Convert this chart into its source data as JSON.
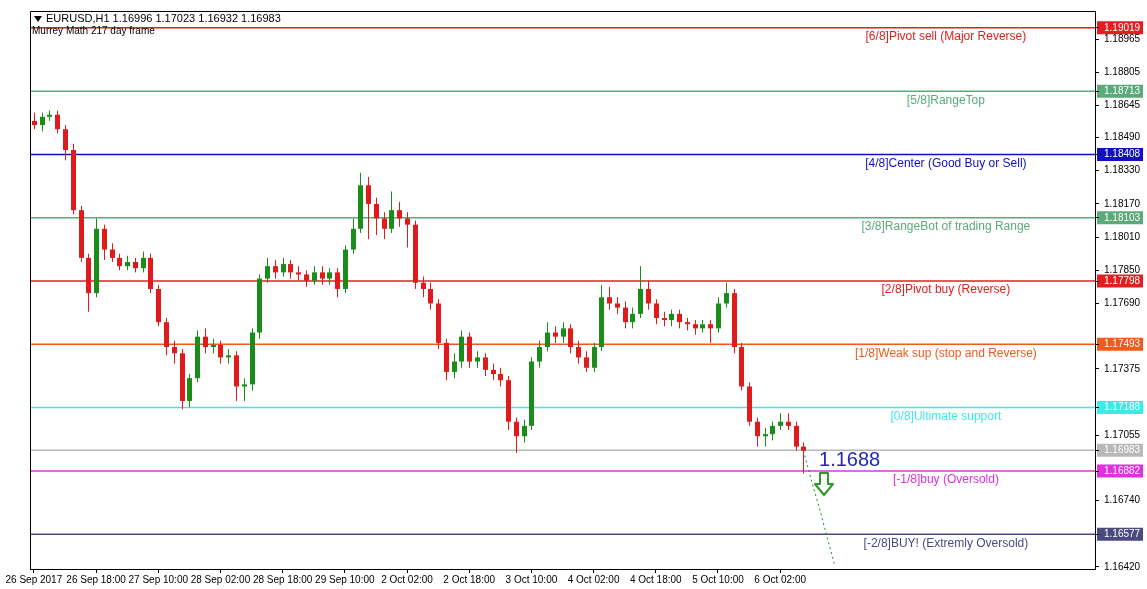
{
  "chart_data": {
    "type": "candlestick",
    "title": "EURUSD,H1  1.16996 1.17023 1.16932 1.16983",
    "subtitle": "Murrey Math 217 day frame",
    "categories": [
      "26 Sep 2017",
      null,
      null,
      null,
      null,
      null,
      null,
      null,
      "26 Sep 18:00",
      null,
      null,
      null,
      null,
      null,
      null,
      null,
      "27 Sep 10:00",
      null,
      null,
      null,
      null,
      null,
      null,
      null,
      "28 Sep 02:00",
      null,
      null,
      null,
      null,
      null,
      null,
      null,
      "28 Sep 18:00",
      null,
      null,
      null,
      null,
      null,
      null,
      null,
      "29 Sep 10:00",
      null,
      null,
      null,
      null,
      null,
      null,
      null,
      "2 Oct 02:00",
      null,
      null,
      null,
      null,
      null,
      null,
      null,
      "2 Oct 18:00",
      null,
      null,
      null,
      null,
      null,
      null,
      null,
      "3 Oct 10:00",
      null,
      null,
      null,
      null,
      null,
      null,
      null,
      "4 Oct 02:00",
      null,
      null,
      null,
      null,
      null,
      null,
      null,
      "4 Oct 18:00",
      null,
      null,
      null,
      null,
      null,
      null,
      null,
      "5 Oct 10:00",
      null,
      null,
      null,
      null,
      null,
      null,
      null,
      "6 Oct 02:00",
      null,
      null,
      null,
      null,
      null,
      null,
      null,
      null,
      null,
      null,
      null,
      null,
      null,
      null,
      null,
      null,
      null,
      null,
      null,
      null,
      null,
      null,
      null,
      null,
      null,
      null,
      null,
      null,
      null,
      null,
      null,
      null,
      null,
      null,
      null,
      null,
      null,
      null,
      null,
      null
    ],
    "ylim": [
      1.1641,
      1.191
    ],
    "yticks": [
      1.19019,
      1.18965,
      1.18805,
      1.18713,
      1.18645,
      {
        "value": 1.1849,
        "label": "1.18490"
      },
      1.18408,
      {
        "value": 1.1833,
        "label": "1.18330"
      },
      {
        "value": 1.1817,
        "label": "1.18170"
      },
      1.18103,
      {
        "value": 1.1801,
        "label": "1.18010"
      },
      {
        "value": 1.1785,
        "label": "1.17850"
      },
      1.17798,
      {
        "value": 1.1769,
        "label": "1.17690"
      },
      1.17493,
      1.17375,
      1.17188,
      1.17055,
      1.16983,
      1.16882,
      {
        "value": 1.1674,
        "label": "1.16740"
      },
      1.16577,
      {
        "value": 1.1642,
        "label": "1.16420"
      }
    ],
    "grid": false,
    "ref_lines": [
      {
        "axis": "y",
        "value": 1.19019,
        "label": "[6/8]Pivot sell (Major Reverse)",
        "color": "#e02020"
      },
      {
        "axis": "y",
        "value": 1.18713,
        "label": "[5/8]RangeTop",
        "color": "#5aaa7a"
      },
      {
        "axis": "y",
        "value": 1.18408,
        "label": "[4/8]Center (Good Buy or Sell)",
        "color": "#1010c0"
      },
      {
        "axis": "y",
        "value": 1.18103,
        "label": "[3/8]RangeBot of trading Range",
        "color": "#5aaa7a"
      },
      {
        "axis": "y",
        "value": 1.17798,
        "label": "[2/8]Pivot buy (Reverse)",
        "color": "#e02020"
      },
      {
        "axis": "y",
        "value": 1.17493,
        "label": "[1/8]Weak sup (stop and Reverse)",
        "color": "#f05a1a"
      },
      {
        "axis": "y",
        "value": 1.17188,
        "label": "[0/8]Ultimate support",
        "color": "#40e8e8"
      },
      {
        "axis": "y",
        "value": 1.16983,
        "label": null,
        "color": "#b8b8b8"
      },
      {
        "axis": "y",
        "value": 1.16882,
        "label": "[-1/8]buy (Oversold)",
        "color": "#e030e0"
      },
      {
        "axis": "y",
        "value": 1.16577,
        "label": "[-2/8]BUY! (Extremly Oversold)",
        "color": "#4a4a80"
      }
    ],
    "annotations": [
      {
        "text": "1.1688",
        "y": 1.1688
      }
    ],
    "series": [
      {
        "ohlc": [
          [
            1.1857,
            1.1861,
            1.1853,
            1.1855
          ],
          [
            1.1855,
            1.1861,
            1.1852,
            1.1859
          ],
          [
            1.1859,
            1.1862,
            1.1857,
            1.186
          ],
          [
            1.186,
            1.1862,
            1.1851,
            1.1853
          ],
          [
            1.1853,
            1.1855,
            1.1838,
            1.1843
          ],
          [
            1.1843,
            1.1846,
            1.1812,
            1.1814
          ],
          [
            1.1814,
            1.1816,
            1.1789,
            1.1791
          ],
          [
            1.1791,
            1.1793,
            1.1765,
            1.1774
          ],
          [
            1.1774,
            1.181,
            1.1772,
            1.1805
          ],
          [
            1.1805,
            1.1807,
            1.179,
            1.1795
          ],
          [
            1.1795,
            1.1798,
            1.1789,
            1.1791
          ],
          [
            1.1791,
            1.1793,
            1.1785,
            1.1787
          ],
          [
            1.1787,
            1.1792,
            1.1785,
            1.1789
          ],
          [
            1.1789,
            1.1791,
            1.1784,
            1.1786
          ],
          [
            1.1786,
            1.1794,
            1.1784,
            1.1791
          ],
          [
            1.1791,
            1.1793,
            1.1774,
            1.1776
          ],
          [
            1.1776,
            1.1778,
            1.1758,
            1.176
          ],
          [
            1.176,
            1.1762,
            1.1744,
            1.1748
          ],
          [
            1.1748,
            1.1751,
            1.174,
            1.1745
          ],
          [
            1.1745,
            1.1747,
            1.1718,
            1.1722
          ],
          [
            1.1722,
            1.1735,
            1.1719,
            1.1733
          ],
          [
            1.1733,
            1.1756,
            1.1731,
            1.1753
          ],
          [
            1.1753,
            1.1757,
            1.1745,
            1.1748
          ],
          [
            1.1748,
            1.1752,
            1.1745,
            1.1749
          ],
          [
            1.1749,
            1.1751,
            1.174,
            1.1743
          ],
          [
            1.1743,
            1.1747,
            1.174,
            1.1744
          ],
          [
            1.1744,
            1.1746,
            1.1722,
            1.1729
          ],
          [
            1.1729,
            1.1733,
            1.1722,
            1.173
          ],
          [
            1.173,
            1.1757,
            1.1727,
            1.1755
          ],
          [
            1.1755,
            1.1783,
            1.1752,
            1.1781
          ],
          [
            1.1781,
            1.1791,
            1.1779,
            1.1787
          ],
          [
            1.1787,
            1.179,
            1.1781,
            1.1784
          ],
          [
            1.1784,
            1.1791,
            1.1782,
            1.1788
          ],
          [
            1.1788,
            1.179,
            1.1781,
            1.1784
          ],
          [
            1.1784,
            1.1787,
            1.178,
            1.1783
          ],
          [
            1.1783,
            1.1785,
            1.1777,
            1.178
          ],
          [
            1.178,
            1.1787,
            1.1778,
            1.1784
          ],
          [
            1.1784,
            1.1787,
            1.1778,
            1.1781
          ],
          [
            1.1781,
            1.1786,
            1.1778,
            1.1784
          ],
          [
            1.1784,
            1.1786,
            1.1772,
            1.1776
          ],
          [
            1.1776,
            1.1797,
            1.1774,
            1.1795
          ],
          [
            1.1795,
            1.181,
            1.1793,
            1.1805
          ],
          [
            1.1805,
            1.1832,
            1.1803,
            1.1826
          ],
          [
            1.1826,
            1.183,
            1.18,
            1.1817
          ],
          [
            1.1817,
            1.182,
            1.1802,
            1.181
          ],
          [
            1.181,
            1.1813,
            1.18,
            1.1805
          ],
          [
            1.1805,
            1.1823,
            1.1803,
            1.1814
          ],
          [
            1.1814,
            1.1818,
            1.1806,
            1.181
          ],
          [
            1.181,
            1.1813,
            1.1796,
            1.1807
          ],
          [
            1.1807,
            1.1809,
            1.1776,
            1.1779
          ],
          [
            1.1779,
            1.1782,
            1.1772,
            1.1776
          ],
          [
            1.1776,
            1.1779,
            1.1766,
            1.1769
          ],
          [
            1.1769,
            1.1771,
            1.1747,
            1.175
          ],
          [
            1.175,
            1.1752,
            1.1732,
            1.1736
          ],
          [
            1.1736,
            1.1745,
            1.1733,
            1.1741
          ],
          [
            1.1741,
            1.1756,
            1.1738,
            1.1753
          ],
          [
            1.1753,
            1.1755,
            1.1738,
            1.1741
          ],
          [
            1.1741,
            1.1746,
            1.1738,
            1.1743
          ],
          [
            1.1743,
            1.1745,
            1.1734,
            1.1737
          ],
          [
            1.1737,
            1.174,
            1.1732,
            1.1735
          ],
          [
            1.1735,
            1.1738,
            1.1729,
            1.1732
          ],
          [
            1.1732,
            1.1734,
            1.1708,
            1.1712
          ],
          [
            1.1712,
            1.1714,
            1.1697,
            1.1705
          ],
          [
            1.1705,
            1.1713,
            1.1702,
            1.171
          ],
          [
            1.171,
            1.1743,
            1.1708,
            1.1741
          ],
          [
            1.1741,
            1.1751,
            1.1738,
            1.1748
          ],
          [
            1.1748,
            1.176,
            1.1746,
            1.1755
          ],
          [
            1.1755,
            1.1758,
            1.175,
            1.1753
          ],
          [
            1.1753,
            1.176,
            1.175,
            1.1757
          ],
          [
            1.1757,
            1.1759,
            1.1745,
            1.1748
          ],
          [
            1.1748,
            1.1751,
            1.174,
            1.1743
          ],
          [
            1.1743,
            1.1746,
            1.1736,
            1.1738
          ],
          [
            1.1738,
            1.175,
            1.1736,
            1.1748
          ],
          [
            1.1748,
            1.1778,
            1.1746,
            1.1772
          ],
          [
            1.1772,
            1.1777,
            1.1766,
            1.1769
          ],
          [
            1.1769,
            1.1772,
            1.1764,
            1.1767
          ],
          [
            1.1767,
            1.177,
            1.1757,
            1.176
          ],
          [
            1.176,
            1.1767,
            1.1757,
            1.1764
          ],
          [
            1.1764,
            1.1787,
            1.1762,
            1.1776
          ],
          [
            1.1776,
            1.178,
            1.1766,
            1.1769
          ],
          [
            1.1769,
            1.1771,
            1.1759,
            1.1762
          ],
          [
            1.1762,
            1.1765,
            1.1758,
            1.1761
          ],
          [
            1.1761,
            1.1766,
            1.1758,
            1.1764
          ],
          [
            1.1764,
            1.1766,
            1.1757,
            1.176
          ],
          [
            1.176,
            1.1762,
            1.1756,
            1.1759
          ],
          [
            1.1759,
            1.1761,
            1.1754,
            1.1757
          ],
          [
            1.1757,
            1.1761,
            1.1755,
            1.1759
          ],
          [
            1.1759,
            1.1761,
            1.175,
            1.1757
          ],
          [
            1.1757,
            1.1772,
            1.1755,
            1.1769
          ],
          [
            1.1769,
            1.1779,
            1.1767,
            1.1774
          ],
          [
            1.1774,
            1.1776,
            1.1745,
            1.1748
          ],
          [
            1.1748,
            1.175,
            1.1727,
            1.1729
          ],
          [
            1.1729,
            1.1731,
            1.171,
            1.1712
          ],
          [
            1.1712,
            1.1714,
            1.17,
            1.1705
          ],
          [
            1.1705,
            1.1709,
            1.17,
            1.1706
          ],
          [
            1.1706,
            1.1712,
            1.1703,
            1.171
          ],
          [
            1.171,
            1.1716,
            1.1708,
            1.1712
          ],
          [
            1.1712,
            1.1716,
            1.1708,
            1.171
          ],
          [
            1.171,
            1.1712,
            1.1698,
            1.17
          ],
          [
            1.17,
            1.1702,
            1.1687,
            1.1698
          ],
          null,
          null,
          null,
          null,
          null,
          null,
          null,
          null,
          null,
          null,
          null,
          null,
          null,
          null,
          null,
          null,
          null,
          null,
          null,
          null,
          null,
          null,
          null,
          null,
          null,
          null,
          null,
          null,
          null,
          null,
          null,
          null,
          null,
          null,
          null,
          null,
          null
        ],
        "colors": [
          "#e01b1b",
          "#1a8c1a",
          "#1a8c1a",
          "#e01b1b",
          "#e01b1b",
          "#e01b1b",
          "#e01b1b",
          "#e01b1b",
          "#1a8c1a",
          "#e01b1b",
          "#e01b1b",
          "#e01b1b",
          "#1a8c1a",
          "#e01b1b",
          "#1a8c1a",
          "#e01b1b",
          "#e01b1b",
          "#e01b1b",
          "#e01b1b",
          "#e01b1b",
          "#1a8c1a",
          "#1a8c1a",
          "#e01b1b",
          "#1a8c1a",
          "#e01b1b",
          "#1a8c1a",
          "#e01b1b",
          "#1a8c1a",
          "#1a8c1a",
          "#1a8c1a",
          "#1a8c1a",
          "#e01b1b",
          "#1a8c1a",
          "#e01b1b",
          "#e01b1b",
          "#e01b1b",
          "#1a8c1a",
          "#e01b1b",
          "#1a8c1a",
          "#e01b1b",
          "#1a8c1a",
          "#1a8c1a",
          "#1a8c1a",
          "#e01b1b",
          "#e01b1b",
          "#e01b1b",
          "#1a8c1a",
          "#e01b1b",
          "#e01b1b",
          "#e01b1b",
          "#e01b1b",
          "#e01b1b",
          "#e01b1b",
          "#e01b1b",
          "#1a8c1a",
          "#1a8c1a",
          "#e01b1b",
          "#1a8c1a",
          "#e01b1b",
          "#e01b1b",
          "#e01b1b",
          "#e01b1b",
          "#e01b1b",
          "#1a8c1a",
          "#1a8c1a",
          "#1a8c1a",
          "#1a8c1a",
          "#e01b1b",
          "#1a8c1a",
          "#e01b1b",
          "#e01b1b",
          "#e01b1b",
          "#1a8c1a",
          "#1a8c1a",
          "#e01b1b",
          "#e01b1b",
          "#e01b1b",
          "#1a8c1a",
          "#1a8c1a",
          "#e01b1b",
          "#e01b1b",
          "#e01b1b",
          "#1a8c1a",
          "#e01b1b",
          "#e01b1b",
          "#e01b1b",
          "#1a8c1a",
          "#e01b1b",
          "#1a8c1a",
          "#1a8c1a",
          "#e01b1b",
          "#e01b1b",
          "#e01b1b",
          "#e01b1b",
          "#1a8c1a",
          "#1a8c1a",
          "#1a8c1a",
          "#e01b1b",
          "#e01b1b",
          "#e01b1b",
          null,
          null,
          null,
          null,
          null,
          null,
          null,
          null,
          null,
          null,
          null,
          null,
          null,
          null,
          null,
          null,
          null,
          null,
          null,
          null,
          null,
          null,
          null,
          null,
          null,
          null,
          null,
          null,
          null,
          null,
          null,
          null,
          null,
          null,
          null,
          null,
          null
        ]
      },
      {
        "type": "line",
        "color": "#1a8c1a",
        "line_style": "dotted",
        "marker": "none",
        "values": [
          null,
          null,
          null,
          null,
          null,
          null,
          null,
          null,
          null,
          null,
          null,
          null,
          null,
          null,
          null,
          null,
          null,
          null,
          null,
          null,
          null,
          null,
          null,
          null,
          null,
          null,
          null,
          null,
          null,
          null,
          null,
          null,
          null,
          null,
          null,
          null,
          null,
          null,
          null,
          null,
          null,
          null,
          null,
          null,
          null,
          null,
          null,
          null,
          null,
          null,
          null,
          null,
          null,
          null,
          null,
          null,
          null,
          null,
          null,
          null,
          null,
          null,
          null,
          null,
          null,
          null,
          null,
          null,
          null,
          null,
          null,
          null,
          null,
          null,
          null,
          null,
          null,
          null,
          null,
          null,
          null,
          null,
          null,
          null,
          null,
          null,
          null,
          null,
          null,
          null,
          null,
          null,
          null,
          null,
          null,
          null,
          null,
          null,
          null,
          1.1698,
          1.1684,
          1.1671,
          1.1657,
          1.1643,
          null,
          null,
          null,
          null,
          null,
          null,
          null,
          null,
          null,
          null,
          null,
          null,
          null,
          null,
          null,
          null,
          null,
          null,
          null,
          null,
          null,
          null,
          null,
          null,
          null,
          null,
          null,
          null,
          null,
          null,
          null,
          null,
          null
        ]
      }
    ]
  }
}
